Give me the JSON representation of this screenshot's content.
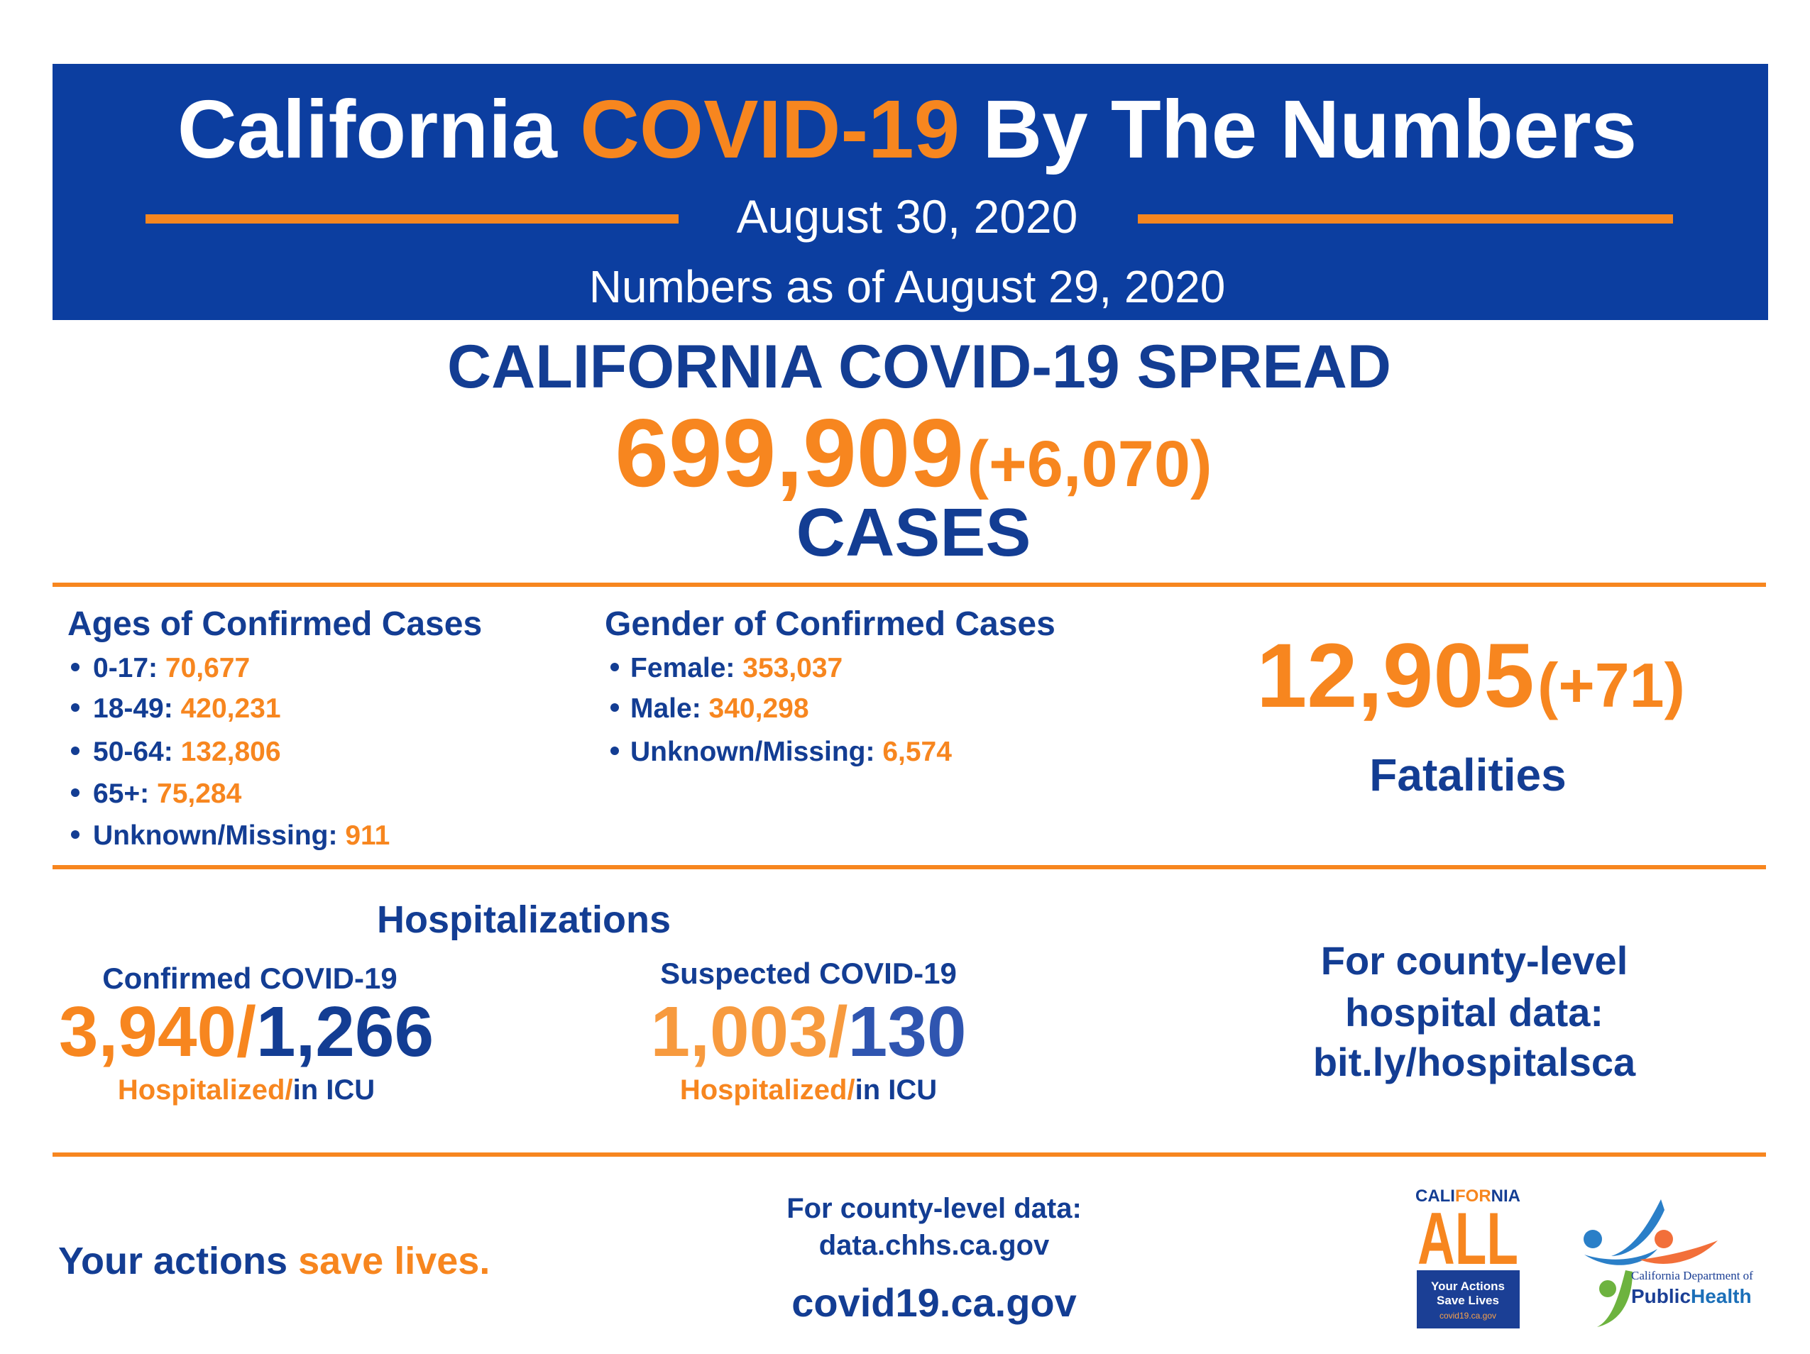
{
  "header": {
    "title": {
      "first": "California",
      "highlight": "COVID-19",
      "rest": "By The Numbers"
    },
    "date": "August 30, 2020",
    "as_of": "Numbers as of August 29, 2020"
  },
  "spread": {
    "heading": "CALIFORNIA COVID-19 SPREAD",
    "total": "699,909",
    "change": "(+6,070)",
    "label": "CASES"
  },
  "ages": {
    "heading": "Ages of Confirmed Cases",
    "items": [
      {
        "label": "0-17:",
        "value": "70,677"
      },
      {
        "label": "18-49:",
        "value": "420,231"
      },
      {
        "label": "50-64:",
        "value": "132,806"
      },
      {
        "label": "65+:",
        "value": "75,284"
      },
      {
        "label": "Unknown/Missing:",
        "value": "911"
      }
    ]
  },
  "gender": {
    "heading": "Gender of Confirmed Cases",
    "items": [
      {
        "label": "Female:",
        "value": "353,037"
      },
      {
        "label": "Male:",
        "value": "340,298"
      },
      {
        "label": "Unknown/Missing:",
        "value": "6,574"
      }
    ]
  },
  "fatalities": {
    "total": "12,905",
    "change": "(+71)",
    "label": "Fatalities"
  },
  "hospitalizations": {
    "heading": "Hospitalizations",
    "separator": "/",
    "confirmed": {
      "label": "Confirmed COVID-19",
      "hospitalized": "3,940",
      "icu": "1,266",
      "hospitalized_label": "Hospitalized",
      "icu_label": "in ICU"
    },
    "suspected": {
      "label": "Suspected COVID-19",
      "hospitalized": "1,003",
      "icu": "130",
      "hospitalized_label": "Hospitalized",
      "icu_label": "in ICU"
    }
  },
  "county_hospital": {
    "lines": [
      "For county-level",
      "hospital data:",
      "bit.ly/hospitalsca"
    ]
  },
  "footer": {
    "slogan": {
      "first": "Your actions",
      "highlight": "save lives."
    },
    "county_data": [
      "For county-level data:",
      "data.chhs.ca.gov"
    ],
    "website": "covid19.ca.gov"
  },
  "logos": {
    "california_all": {
      "cali": "CALI",
      "for": "FOR",
      "nia": "NIA",
      "all": "ALL",
      "box": [
        "Your Actions",
        "Save Lives",
        "covid19.ca.gov"
      ]
    },
    "cdph": {
      "department": "California Department of",
      "public": "Public",
      "health": "Health"
    }
  }
}
